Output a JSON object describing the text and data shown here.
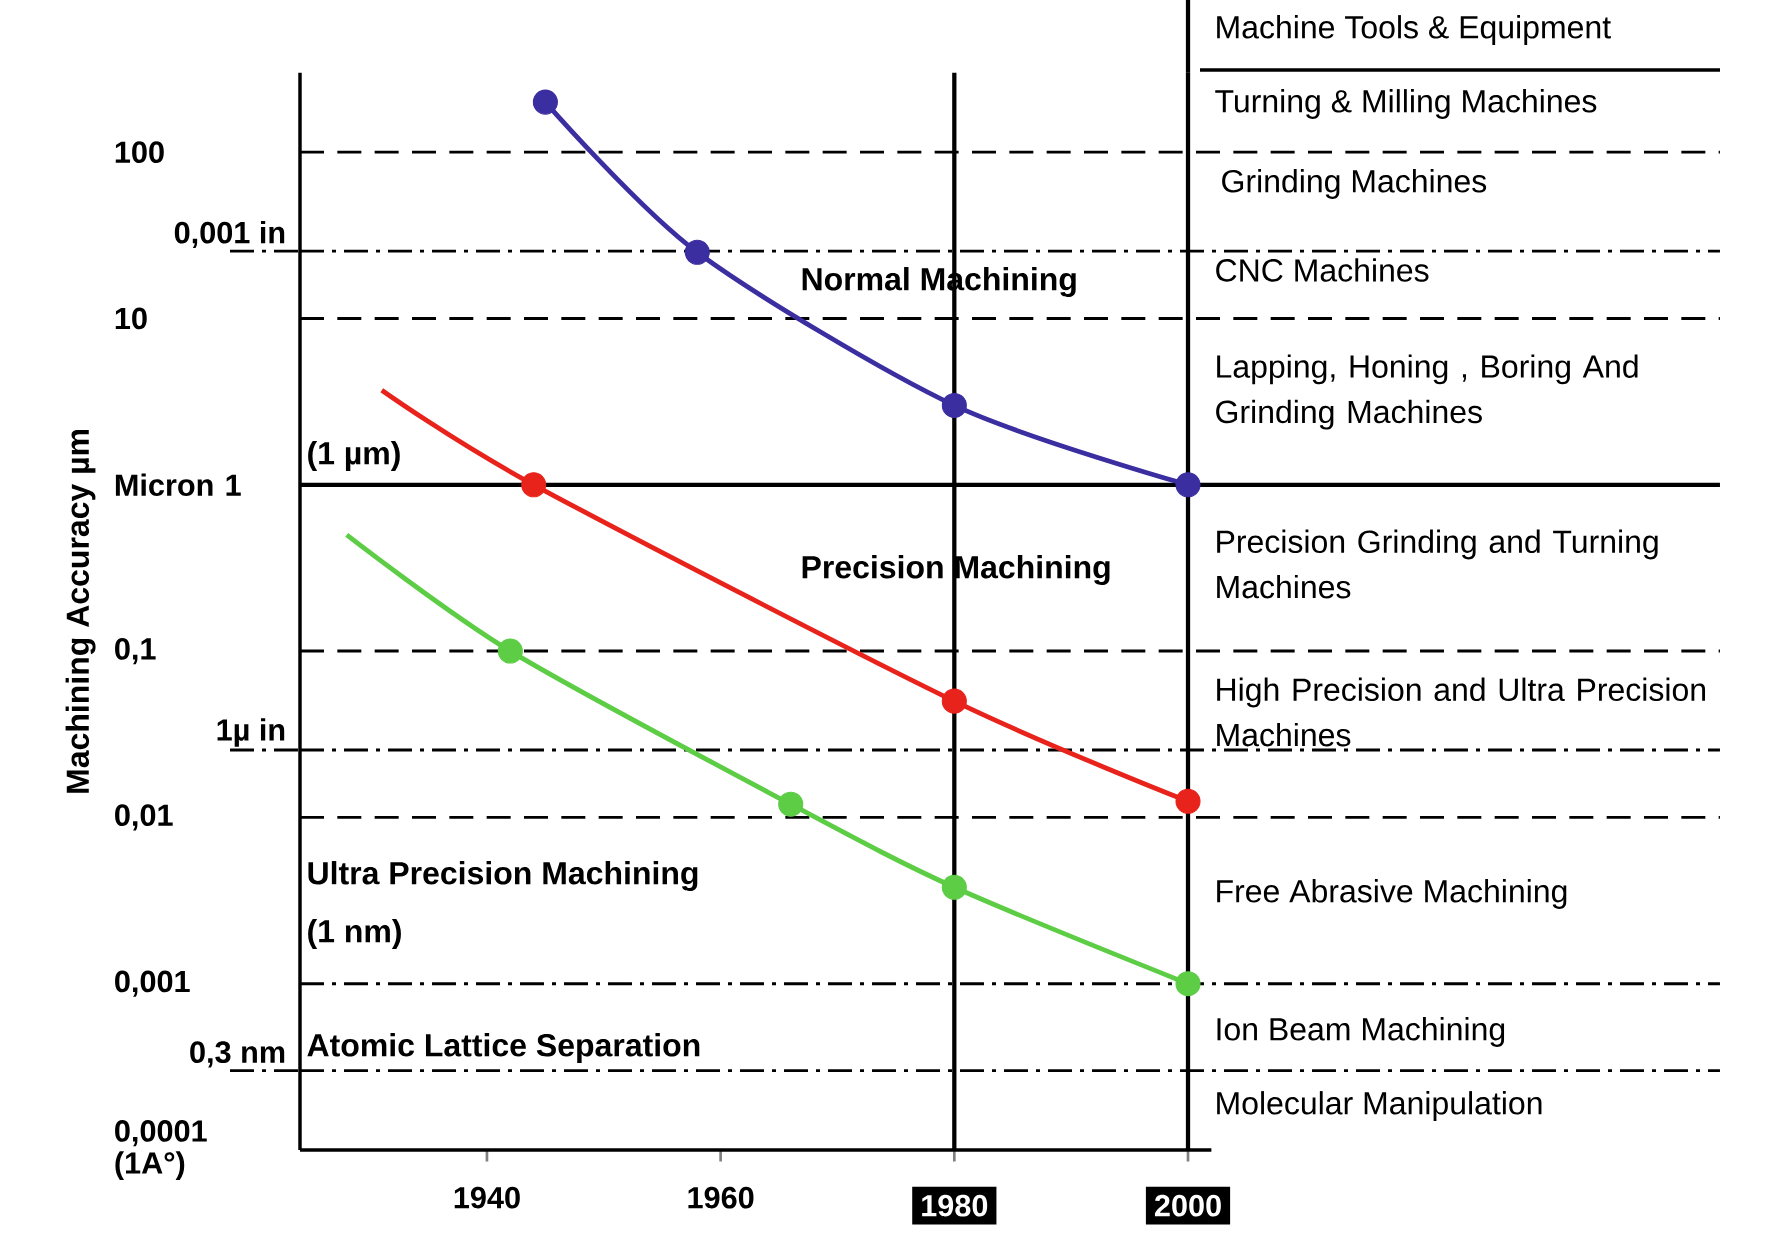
{
  "chart_data": {
    "type": "line",
    "log": "y",
    "ylabel": "Machining Accuracy µm",
    "xlim": [
      1924,
      2002
    ],
    "ylim": [
      0.0001,
      300
    ],
    "xticks": [
      1940,
      1960,
      1980,
      2000
    ],
    "yticks": [
      {
        "value": 0.0001,
        "label": "0,0001 (1A°)"
      },
      {
        "value": 0.001,
        "label": "0,001"
      },
      {
        "value": 0.01,
        "label": "0,01"
      },
      {
        "value": 0.1,
        "label": "0,1"
      },
      {
        "value": 1,
        "label": "Micron 1"
      },
      10,
      100
    ],
    "series": [
      {
        "marker": "none",
        "color": "#3b2ea0",
        "x": [
          1945,
          1958,
          1980,
          2000
        ],
        "values": [
          200,
          25,
          3,
          1
        ]
      },
      {
        "type": "scatter",
        "marker": "circle",
        "color": "#3b2ea0",
        "x": [
          1945,
          1958,
          1980,
          2000
        ],
        "values": [
          200,
          25,
          3,
          1
        ]
      },
      {
        "marker": "none",
        "color": "#e8231b",
        "x": [
          1931,
          1944,
          1980,
          2000
        ],
        "values": [
          3.7,
          1,
          0.05,
          0.0125
        ]
      },
      {
        "type": "scatter",
        "marker": "circle",
        "color": "#e8231b",
        "x": [
          1944,
          1980,
          2000
        ],
        "values": [
          1,
          0.05,
          0.0125
        ]
      },
      {
        "marker": "none",
        "color": "#5ccd45",
        "x": [
          1928,
          1942,
          1966,
          1980,
          2000
        ],
        "values": [
          0.5,
          0.1,
          0.012,
          0.0038,
          0.001
        ]
      },
      {
        "type": "scatter",
        "marker": "circle",
        "color": "#5ccd45",
        "x": [
          1942,
          1966,
          1980,
          2000
        ],
        "values": [
          0.1,
          0.012,
          0.0038,
          0.001
        ]
      }
    ],
    "ref_lines": [
      {
        "axis": "y",
        "value": 100,
        "line_style": "dashed"
      },
      {
        "axis": "y",
        "value": 25.4,
        "line_style": "dashdot",
        "label": "0,001 in"
      },
      {
        "axis": "y",
        "value": 10,
        "line_style": "dashed"
      },
      {
        "axis": "y",
        "value": 1,
        "line_style": "solid"
      },
      {
        "axis": "y",
        "value": 0.1,
        "line_style": "dashed"
      },
      {
        "axis": "y",
        "value": 0.0254,
        "line_style": "dashdot",
        "label": "1µ in"
      },
      {
        "axis": "y",
        "value": 0.01,
        "line_style": "dashed"
      },
      {
        "axis": "y",
        "value": 0.001,
        "line_style": "dashdot"
      },
      {
        "axis": "y",
        "value": 0.0003,
        "line_style": "dashdot",
        "label": "0,3 nm"
      },
      {
        "axis": "x",
        "value": 1980,
        "line_style": "solid"
      },
      {
        "axis": "x",
        "value": 2000,
        "line_style": "solid"
      }
    ],
    "annotations": [
      "Normal Machining",
      "Precision Machining",
      "Ultra Precision Machining",
      "(1 nm)",
      "(1 µm)",
      "Atomic Lattice Separation",
      "Machine Tools & Equipment",
      "Turning & Milling Machines",
      "Grinding Machines",
      "CNC Machines",
      "Lapping, Honing , Boring And Grinding  Machines",
      "Precision Grinding and Turning Machines",
      "High Precision and Ultra Precision Machines",
      "Free Abrasive Machining",
      "Ion Beam Machining",
      "Molecular Manipulation"
    ]
  }
}
